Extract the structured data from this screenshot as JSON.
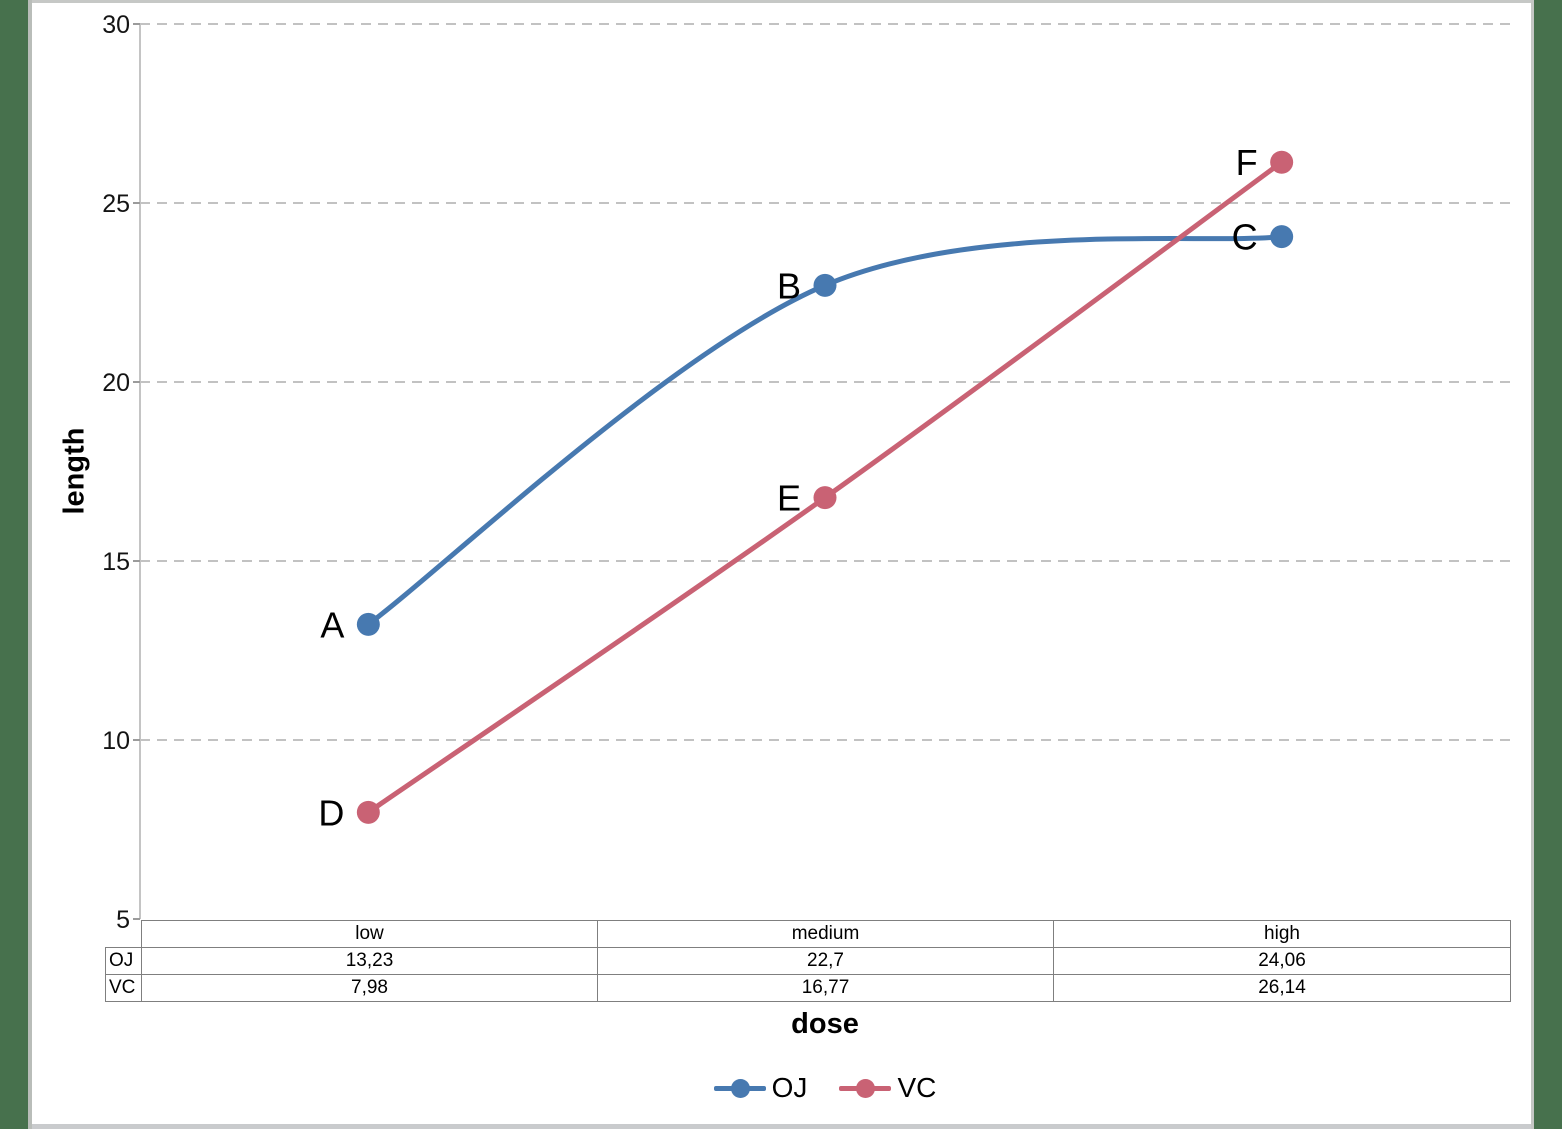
{
  "frame": {
    "side_band_color": "#47714d",
    "top_strip_color": "#c6c8c6",
    "bottom_strip_color": "#c9cbcd"
  },
  "chart_data": {
    "type": "line",
    "title": "",
    "xlabel": "dose",
    "ylabel": "length",
    "categories": [
      "low",
      "medium",
      "high"
    ],
    "series": [
      {
        "name": "OJ",
        "color": "#4779b0",
        "values": [
          13.23,
          22.7,
          24.06
        ],
        "point_labels": [
          "A",
          "B",
          "C"
        ]
      },
      {
        "name": "VC",
        "color": "#c96274",
        "values": [
          7.98,
          16.77,
          26.14
        ],
        "point_labels": [
          "D",
          "E",
          "F"
        ]
      }
    ],
    "ylim": [
      5,
      30
    ],
    "yticks": [
      5,
      10,
      15,
      20,
      25,
      30
    ],
    "grid": "horizontal-dashed",
    "gridline_color": "#c2c2c2",
    "smoothed": true,
    "legend_position": "bottom"
  },
  "table": {
    "columns": [
      "low",
      "medium",
      "high"
    ],
    "rows": [
      {
        "label": "OJ",
        "values": [
          "13,23",
          "22,7",
          "24,06"
        ]
      },
      {
        "label": "VC",
        "values": [
          "7,98",
          "16,77",
          "26,14"
        ]
      }
    ]
  }
}
